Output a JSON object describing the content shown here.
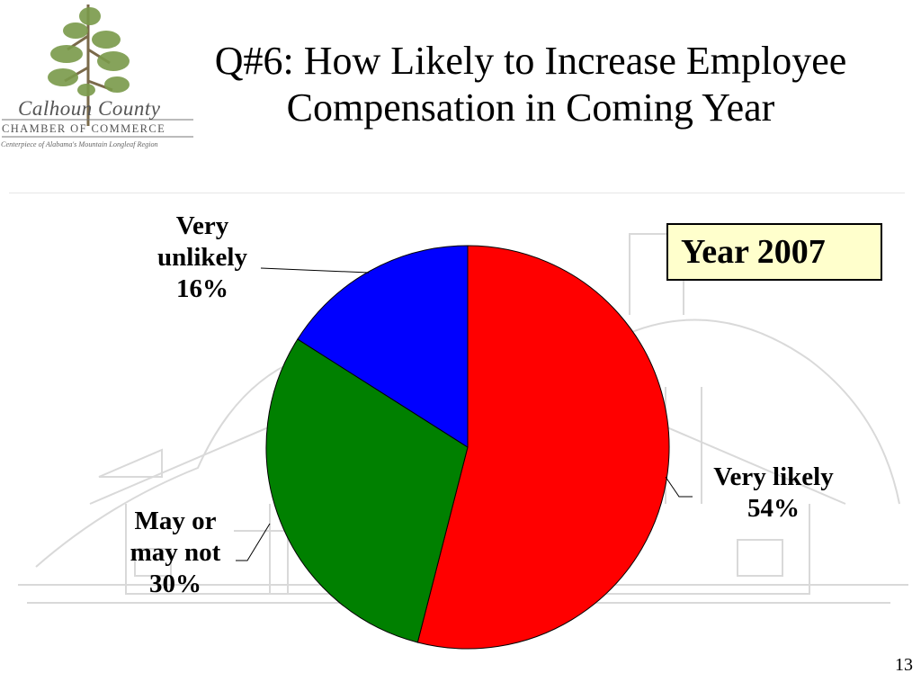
{
  "logo": {
    "script": "Calhoun County",
    "chamber": "CHAMBER OF COMMERCE",
    "tagline": "Centerpiece of Alabama's Mountain Longleaf Region"
  },
  "slide_title_line1": "Q#6: How Likely to Increase Employee",
  "slide_title_line2": "Compensation in Coming Year",
  "year_box": "Year 2007",
  "page_number": "13",
  "chart_data": {
    "type": "pie",
    "title": "Q#6: How Likely to Increase Employee Compensation in Coming Year",
    "annotation": "Year 2007",
    "slices": [
      {
        "label_line1": "Very likely",
        "label_line2": "",
        "pct_text": "54%",
        "value": 54,
        "color": "#ff0000"
      },
      {
        "label_line1": "May or",
        "label_line2": "may not",
        "pct_text": "30%",
        "value": 30,
        "color": "#008000"
      },
      {
        "label_line1": "Very",
        "label_line2": "unlikely",
        "pct_text": "16%",
        "value": 16,
        "color": "#0000ff"
      }
    ],
    "start_angle": "12 o'clock",
    "direction": "clockwise",
    "legend": "none (data labels on slices)"
  }
}
